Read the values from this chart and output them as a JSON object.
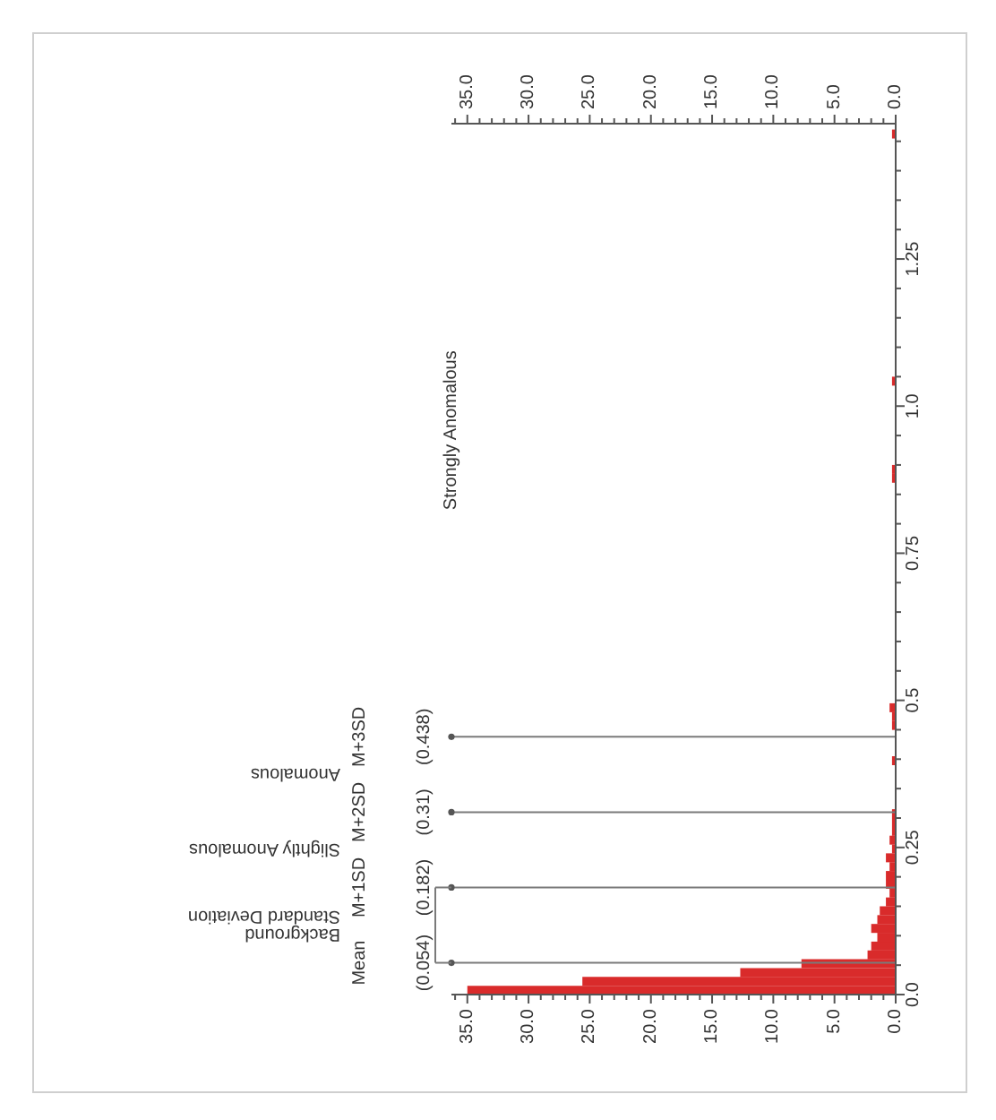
{
  "chart_data": {
    "type": "histogram",
    "orientation": "horizontal",
    "color": "#d92b2b",
    "bins": [
      0,
      0.015,
      0.03,
      0.045,
      0.06,
      0.075,
      0.09,
      0.105,
      0.12,
      0.135,
      0.15,
      0.165,
      0.18,
      0.195,
      0.21,
      0.225,
      0.24,
      0.255,
      0.27,
      0.285,
      0.3,
      0.315,
      0.33,
      0.345,
      0.36,
      0.375,
      0.39,
      0.405,
      0.42,
      0.435,
      0.45,
      0.465,
      0.48,
      0.495,
      0.51,
      0.525,
      0.54,
      0.555,
      0.57,
      0.585,
      0.6,
      0.615,
      0.63,
      0.645,
      0.66,
      0.675,
      0.69,
      0.705,
      0.72,
      0.735,
      0.75,
      0.765,
      0.78,
      0.795,
      0.81,
      0.825,
      0.84,
      0.855,
      0.87,
      0.885,
      0.9,
      0.915,
      0.93,
      0.945,
      0.96,
      0.975,
      0.99,
      1.005,
      1.02,
      1.035,
      1.05,
      1.065,
      1.08,
      1.095,
      1.11,
      1.125,
      1.14,
      1.155,
      1.17,
      1.185,
      1.2,
      1.215,
      1.23,
      1.245,
      1.26,
      1.275,
      1.29,
      1.305,
      1.32,
      1.335,
      1.35,
      1.365,
      1.38,
      1.395,
      1.41,
      1.425,
      1.44,
      1.455,
      1.47
    ],
    "values": [
      35,
      25.6,
      12.7,
      7.7,
      2.3,
      2,
      1.5,
      2,
      1.5,
      1.3,
      0.8,
      0.5,
      0.8,
      0.8,
      0.5,
      0.8,
      0.3,
      0.5,
      0.3,
      0.3,
      0.3,
      0,
      0,
      0,
      0,
      0,
      0.3,
      0,
      0,
      0,
      0.3,
      0.3,
      0.5,
      0,
      0,
      0,
      0,
      0,
      0,
      0,
      0,
      0,
      0,
      0,
      0,
      0,
      0,
      0,
      0,
      0,
      0,
      0,
      0,
      0,
      0,
      0,
      0,
      0,
      0.3,
      0.3,
      0,
      0,
      0,
      0,
      0,
      0,
      0,
      0,
      0,
      0.3,
      0,
      0,
      0,
      0,
      0,
      0,
      0,
      0,
      0,
      0,
      0,
      0,
      0,
      0,
      0,
      0,
      0,
      0,
      0,
      0,
      0,
      0,
      0,
      0,
      0,
      0,
      0,
      0.3
    ],
    "xlim": [
      36.3,
      0
    ],
    "xticks": [
      {
        "value": 0,
        "label": "0.0"
      },
      {
        "value": 1,
        "label": null
      },
      {
        "value": 2,
        "label": null
      },
      {
        "value": 3,
        "label": null
      },
      {
        "value": 4,
        "label": null
      },
      {
        "value": 5,
        "label": "5.0"
      },
      {
        "value": 6,
        "label": null
      },
      {
        "value": 7,
        "label": null
      },
      {
        "value": 8,
        "label": null
      },
      {
        "value": 9,
        "label": null
      },
      {
        "value": 10,
        "label": "10.0"
      },
      {
        "value": 11,
        "label": null
      },
      {
        "value": 12,
        "label": null
      },
      {
        "value": 13,
        "label": null
      },
      {
        "value": 14,
        "label": null
      },
      {
        "value": 15,
        "label": "15.0"
      },
      {
        "value": 16,
        "label": null
      },
      {
        "value": 17,
        "label": null
      },
      {
        "value": 18,
        "label": null
      },
      {
        "value": 19,
        "label": null
      },
      {
        "value": 20,
        "label": "20.0"
      },
      {
        "value": 21,
        "label": null
      },
      {
        "value": 22,
        "label": null
      },
      {
        "value": 23,
        "label": null
      },
      {
        "value": 24,
        "label": null
      },
      {
        "value": 25,
        "label": "25.0"
      },
      {
        "value": 26,
        "label": null
      },
      {
        "value": 27,
        "label": null
      },
      {
        "value": 28,
        "label": null
      },
      {
        "value": 29,
        "label": null
      },
      {
        "value": 30,
        "label": "30.0"
      },
      {
        "value": 31,
        "label": null
      },
      {
        "value": 32,
        "label": null
      },
      {
        "value": 33,
        "label": null
      },
      {
        "value": 34,
        "label": null
      },
      {
        "value": 35,
        "label": "35.0"
      },
      {
        "value": 36,
        "label": null
      }
    ],
    "x2lim": [
      36.3,
      0
    ],
    "x2ticks": [
      {
        "value": 0,
        "label": "0.0"
      },
      {
        "value": 1,
        "label": null
      },
      {
        "value": 2,
        "label": null
      },
      {
        "value": 3,
        "label": null
      },
      {
        "value": 4,
        "label": null
      },
      {
        "value": 5,
        "label": "5.0"
      },
      {
        "value": 6,
        "label": null
      },
      {
        "value": 7,
        "label": null
      },
      {
        "value": 8,
        "label": null
      },
      {
        "value": 9,
        "label": null
      },
      {
        "value": 10,
        "label": "10.0"
      },
      {
        "value": 11,
        "label": null
      },
      {
        "value": 12,
        "label": null
      },
      {
        "value": 13,
        "label": null
      },
      {
        "value": 14,
        "label": null
      },
      {
        "value": 15,
        "label": "15.0"
      },
      {
        "value": 16,
        "label": null
      },
      {
        "value": 17,
        "label": null
      },
      {
        "value": 18,
        "label": null
      },
      {
        "value": 19,
        "label": null
      },
      {
        "value": 20,
        "label": "20.0"
      },
      {
        "value": 21,
        "label": null
      },
      {
        "value": 22,
        "label": null
      },
      {
        "value": 23,
        "label": null
      },
      {
        "value": 24,
        "label": null
      },
      {
        "value": 25,
        "label": "25.0"
      },
      {
        "value": 26,
        "label": null
      },
      {
        "value": 27,
        "label": null
      },
      {
        "value": 28,
        "label": null
      },
      {
        "value": 29,
        "label": null
      },
      {
        "value": 30,
        "label": "30.0"
      },
      {
        "value": 31,
        "label": null
      },
      {
        "value": 32,
        "label": null
      },
      {
        "value": 33,
        "label": null
      },
      {
        "value": 34,
        "label": null
      },
      {
        "value": 35,
        "label": "35.0"
      },
      {
        "value": 36,
        "label": null
      }
    ],
    "ylim": [
      0,
      1.48
    ],
    "yticks": [
      {
        "value": 0,
        "label": "0.0"
      },
      {
        "value": 0.05,
        "label": null
      },
      {
        "value": 0.1,
        "label": null
      },
      {
        "value": 0.15,
        "label": null
      },
      {
        "value": 0.2,
        "label": null
      },
      0.25,
      {
        "value": 0.3,
        "label": null
      },
      {
        "value": 0.35,
        "label": null
      },
      {
        "value": 0.4,
        "label": null
      },
      {
        "value": 0.45,
        "label": null
      },
      0.5,
      {
        "value": 0.55,
        "label": null
      },
      {
        "value": 0.6,
        "label": null
      },
      {
        "value": 0.65,
        "label": null
      },
      {
        "value": 0.7,
        "label": null
      },
      0.75,
      {
        "value": 0.8,
        "label": null
      },
      {
        "value": 0.85,
        "label": null
      },
      {
        "value": 0.9,
        "label": null
      },
      {
        "value": 0.95,
        "label": null
      },
      {
        "value": 1,
        "label": "1.0"
      },
      {
        "value": 1.05,
        "label": null
      },
      {
        "value": 1.1,
        "label": null
      },
      {
        "value": 1.15,
        "label": null
      },
      {
        "value": 1.2,
        "label": null
      },
      1.25,
      {
        "value": 1.3,
        "label": null
      },
      {
        "value": 1.35,
        "label": null
      },
      {
        "value": 1.4,
        "label": null
      },
      {
        "value": 1.45,
        "label": null
      }
    ],
    "ref_lines": [
      {
        "axis": "y",
        "value": 0.054,
        "label": "(0.054)"
      },
      {
        "axis": "y",
        "value": 0.182,
        "label": "(0.182)"
      },
      {
        "axis": "y",
        "value": 0.31,
        "label": "(0.31)"
      },
      {
        "axis": "y",
        "value": 0.438,
        "label": "(0.438)"
      }
    ],
    "annotations": [
      "Mean",
      "M+1SD",
      "M+2SD",
      "M+3SD",
      "Background Standard Deviation",
      "Slightly Anomalous",
      "Anomalous",
      "Strongly Anomalous"
    ]
  }
}
